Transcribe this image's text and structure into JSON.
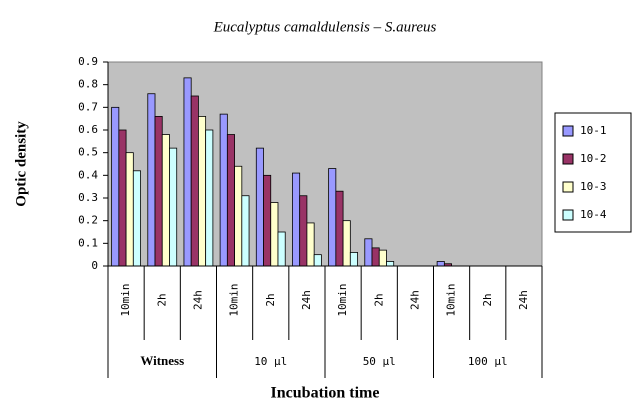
{
  "chart_data": {
    "type": "bar",
    "title": "Eucalyptus camaldulensis – S.aureus",
    "x_label": "Incubation time",
    "y_label": "Optic density",
    "categories": [
      "10min",
      "2h",
      "24h",
      "10min",
      "2h",
      "24h",
      "10min",
      "2h",
      "24h",
      "10min",
      "2h",
      "24h"
    ],
    "groups": [
      "Witness",
      "10 µl",
      "50 µl",
      "100 µl"
    ],
    "series": [
      {
        "name": "10-1",
        "color": "#9999ff",
        "values": [
          0.7,
          0.76,
          0.83,
          0.67,
          0.52,
          0.41,
          0.43,
          0.12,
          0,
          0.02,
          0,
          0
        ]
      },
      {
        "name": "10-2",
        "color": "#993366",
        "values": [
          0.6,
          0.66,
          0.75,
          0.58,
          0.4,
          0.31,
          0.33,
          0.08,
          0,
          0.01,
          0,
          0
        ]
      },
      {
        "name": "10-3",
        "color": "#ffffcc",
        "values": [
          0.5,
          0.58,
          0.66,
          0.44,
          0.28,
          0.19,
          0.2,
          0.07,
          0,
          0,
          0,
          0
        ]
      },
      {
        "name": "10-4",
        "color": "#ccffff",
        "values": [
          0.42,
          0.52,
          0.6,
          0.31,
          0.15,
          0.05,
          0.06,
          0.02,
          0,
          0,
          0,
          0
        ]
      }
    ],
    "ylim": [
      0,
      0.9
    ],
    "yticks": [
      0,
      0.1,
      0.2,
      0.3,
      0.4,
      0.5,
      0.6,
      0.7,
      0.8,
      0.9
    ],
    "plot_background": "#c0c0c0",
    "legend": "right"
  }
}
